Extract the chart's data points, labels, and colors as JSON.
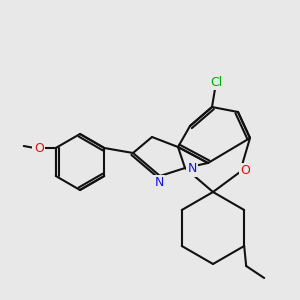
{
  "bg": "#e8e8e8",
  "bc": "#111111",
  "lw": 1.5,
  "atom_colors": {
    "Cl": "#00aa00",
    "O": "#dd1111",
    "N": "#1111dd"
  },
  "figsize": [
    3.0,
    3.0
  ],
  "dpi": 100
}
